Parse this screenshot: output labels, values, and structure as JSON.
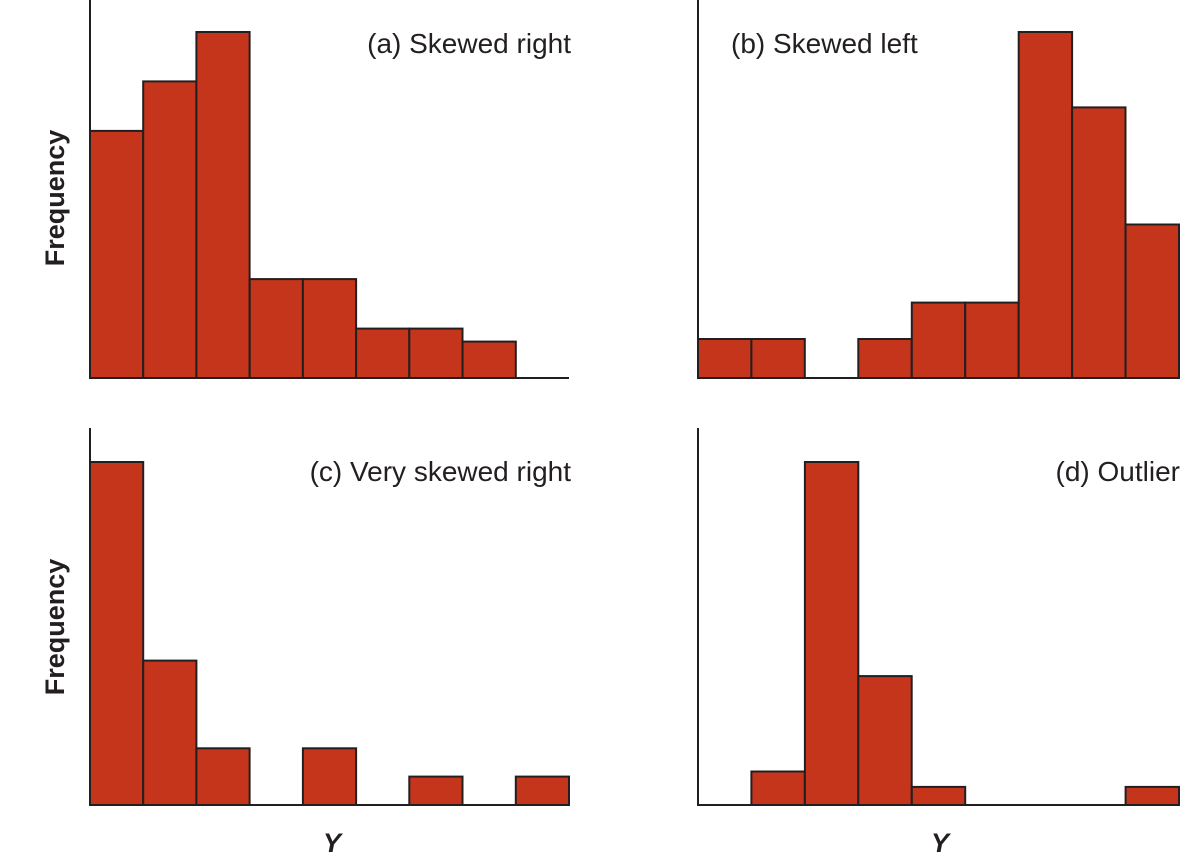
{
  "style": {
    "bar_color": "#c4351c",
    "axis_color": "#231f20"
  },
  "chart_data": [
    {
      "type": "bar",
      "title": "(a) Skewed right",
      "xlabel": "",
      "ylabel": "Frequency",
      "bins": 9,
      "values": [
        9.5,
        11.4,
        13.3,
        3.8,
        3.8,
        1.9,
        1.9,
        1.4,
        0
      ],
      "ylim": [
        0,
        14
      ]
    },
    {
      "type": "bar",
      "title": "(b) Skewed left",
      "xlabel": "",
      "ylabel": "",
      "bins": 9,
      "values": [
        1.5,
        1.5,
        0,
        1.5,
        2.9,
        2.9,
        13.3,
        10.4,
        5.9
      ],
      "ylim": [
        0,
        14
      ]
    },
    {
      "type": "bar",
      "title": "(c) Very skewed right",
      "xlabel": "Y",
      "ylabel": "Frequency",
      "bins": 9,
      "values": [
        13.3,
        5.6,
        2.2,
        0,
        2.2,
        0,
        1.1,
        0,
        1.1
      ],
      "ylim": [
        0,
        14
      ]
    },
    {
      "type": "bar",
      "title": "(d) Outlier",
      "xlabel": "Y",
      "ylabel": "",
      "bins": 9,
      "values": [
        0,
        1.3,
        13.3,
        5.0,
        0.7,
        0,
        0,
        0,
        0.7
      ],
      "ylim": [
        0,
        14
      ]
    }
  ]
}
